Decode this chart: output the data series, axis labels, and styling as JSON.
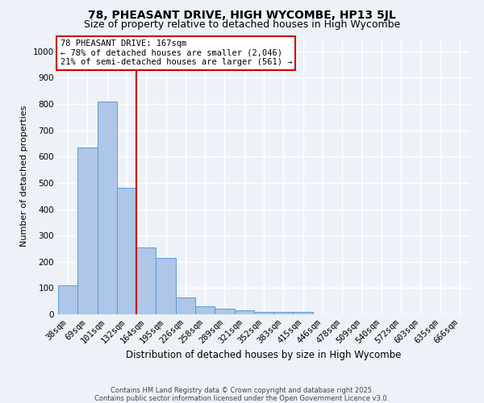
{
  "title1": "78, PHEASANT DRIVE, HIGH WYCOMBE, HP13 5JL",
  "title2": "Size of property relative to detached houses in High Wycombe",
  "xlabel": "Distribution of detached houses by size in High Wycombe",
  "ylabel": "Number of detached properties",
  "categories": [
    "38sqm",
    "69sqm",
    "101sqm",
    "132sqm",
    "164sqm",
    "195sqm",
    "226sqm",
    "258sqm",
    "289sqm",
    "321sqm",
    "352sqm",
    "383sqm",
    "415sqm",
    "446sqm",
    "478sqm",
    "509sqm",
    "540sqm",
    "572sqm",
    "603sqm",
    "635sqm",
    "666sqm"
  ],
  "values": [
    110,
    635,
    810,
    480,
    255,
    215,
    65,
    30,
    22,
    15,
    10,
    10,
    10,
    0,
    0,
    0,
    0,
    0,
    0,
    0,
    0
  ],
  "bar_color": "#aec6e8",
  "bar_edge_color": "#5b9bd5",
  "vline_x": 3.5,
  "vline_color": "#cc0000",
  "ylim": [
    0,
    1050
  ],
  "yticks": [
    0,
    100,
    200,
    300,
    400,
    500,
    600,
    700,
    800,
    900,
    1000
  ],
  "annotation_title": "78 PHEASANT DRIVE: 167sqm",
  "annotation_line1": "← 78% of detached houses are smaller (2,046)",
  "annotation_line2": "21% of semi-detached houses are larger (561) →",
  "annotation_box_color": "#ffffff",
  "annotation_box_edge_color": "#cc0000",
  "footer1": "Contains HM Land Registry data © Crown copyright and database right 2025.",
  "footer2": "Contains public sector information licensed under the Open Government Licence v3.0.",
  "bg_color": "#eef2f8",
  "grid_color": "#ffffff",
  "title1_fontsize": 10,
  "title2_fontsize": 9,
  "xlabel_fontsize": 8.5,
  "ylabel_fontsize": 8,
  "tick_fontsize": 7.5,
  "annotation_fontsize": 7.5,
  "footer_fontsize": 6
}
